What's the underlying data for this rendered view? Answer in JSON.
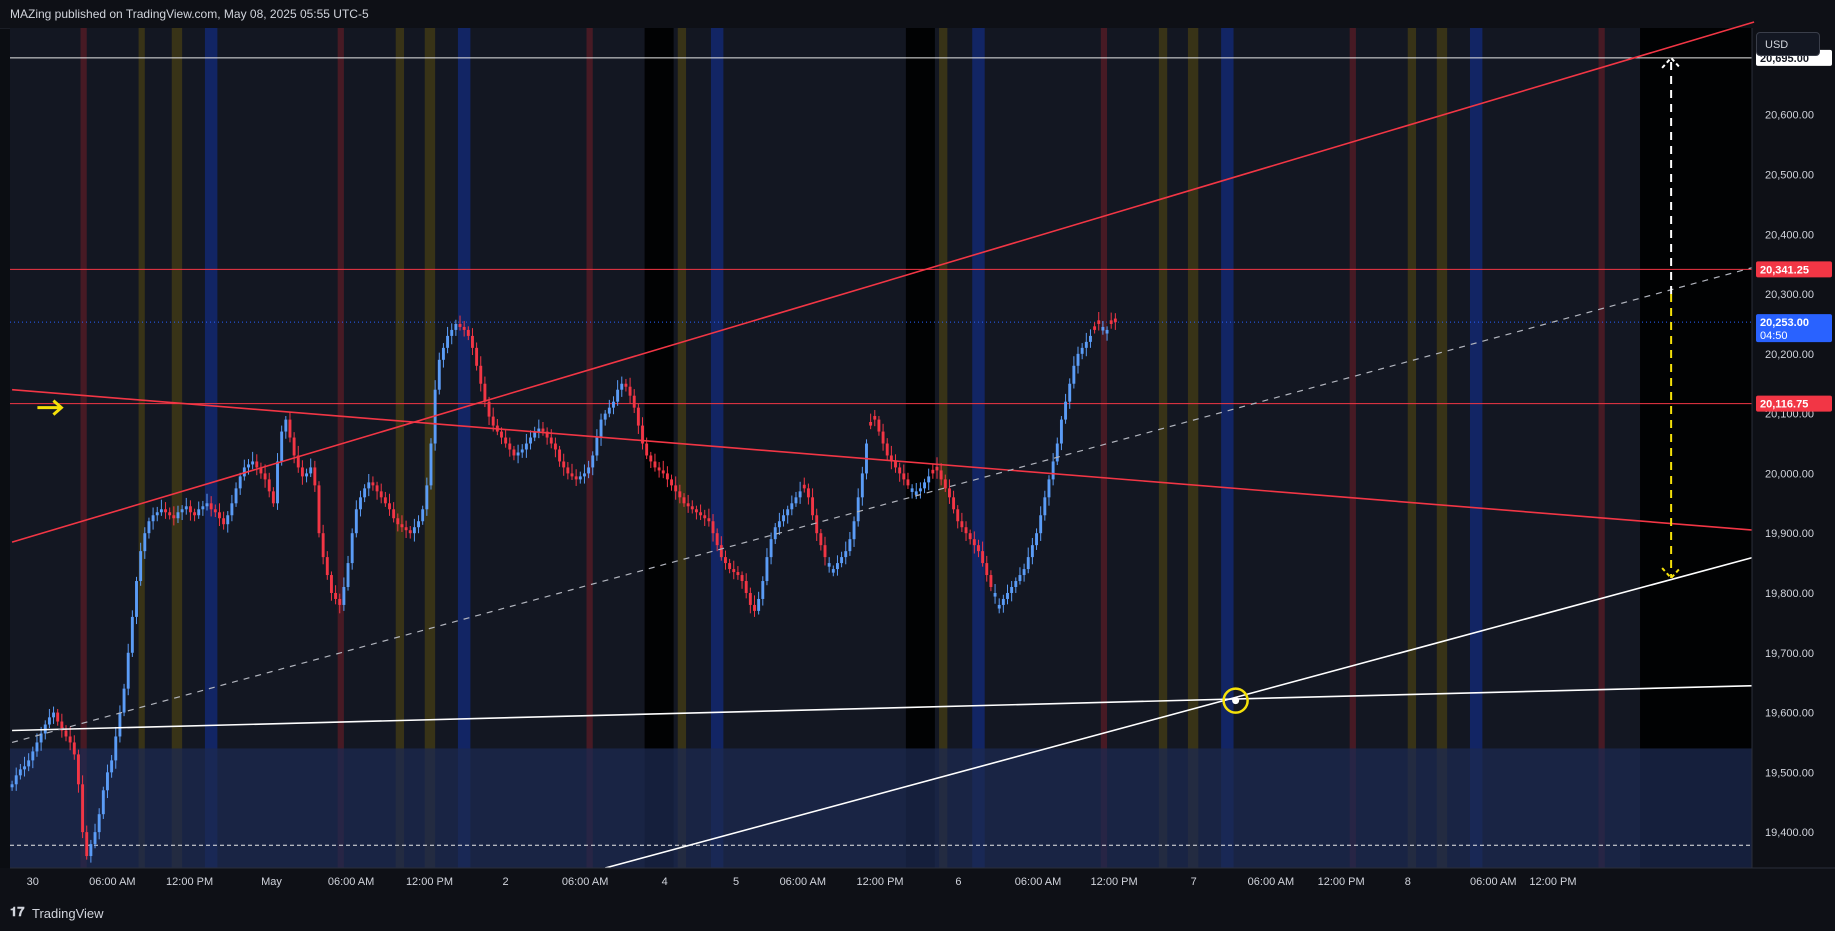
{
  "header": {
    "publisher_text": "MAZing published on TradingView.com, May 08, 2025 05:55 UTC-5"
  },
  "footer": {
    "logo_glyph": "𝟏𝟕",
    "brand": "TradingView"
  },
  "price_axis": {
    "currency": "USD"
  },
  "colors": {
    "background": "#131722",
    "bull": "#5b9cf6",
    "bear": "#f23645",
    "trend_red": "#f23645",
    "trend_white": "#ffffff",
    "marker_yellow": "#f5e10a",
    "label_blue": "#2962ff",
    "label_red": "#f23645",
    "zone_red": "#5a1c26",
    "zone_yellow": "#3d3616",
    "zone_blue": "#13276b",
    "zone_black": "#000000",
    "support_zone": "#1c2a50"
  },
  "chart_data": {
    "type": "candlestick",
    "symbol_currency": "USD",
    "x_tick_labels": [
      "30",
      "06:00 AM",
      "12:00 PM",
      "May",
      "06:00 AM",
      "12:00 PM",
      "2",
      "06:00 AM",
      "4",
      "5",
      "06:00 AM",
      "12:00 PM",
      "6",
      "06:00 AM",
      "12:00 PM",
      "7",
      "06:00 AM",
      "12:00 PM",
      "8",
      "06:00 AM",
      "12:00 PM"
    ],
    "y_ticks": [
      19400,
      19500,
      19600,
      19700,
      19800,
      19900,
      20000,
      20100,
      20200,
      20300,
      20400,
      20500,
      20600
    ],
    "y_tick_labels": [
      "19,400.00",
      "19,500.00",
      "19,600.00",
      "19,700.00",
      "19,800.00",
      "19,900.00",
      "20,000.00",
      "20,100.00",
      "20,200.00",
      "20,300.00",
      "20,400.00",
      "20,500.00",
      "20,600.00"
    ],
    "ylim": [
      19340,
      20745
    ],
    "bar_count": 420,
    "price_labels": [
      {
        "value": 20695.0,
        "text": "20,695.00",
        "style": "white"
      },
      {
        "value": 20341.25,
        "text": "20,341.25",
        "style": "red"
      },
      {
        "value": 20253.0,
        "text": "20,253.00",
        "countdown": "04:50",
        "style": "blue"
      },
      {
        "value": 20116.75,
        "text": "20,116.75",
        "style": "red"
      }
    ],
    "horizontal_lines": [
      {
        "value": 20695.0,
        "color": "white",
        "dash": "solid"
      },
      {
        "value": 20341.25,
        "color": "red",
        "dash": "solid"
      },
      {
        "value": 20253.0,
        "color": "blue",
        "dash": "dotted"
      },
      {
        "value": 20116.75,
        "color": "red",
        "dash": "solid"
      },
      {
        "value": 19378.0,
        "color": "white",
        "dash": "dashed"
      }
    ],
    "support_zone": {
      "from": 19340,
      "to": 19540
    },
    "trendlines": [
      {
        "color": "red",
        "style": "solid",
        "p1": {
          "bar": 0,
          "price": 19885
        },
        "p2": {
          "bar": 420,
          "price": 20755
        }
      },
      {
        "color": "red",
        "style": "solid",
        "p1": {
          "bar": 0,
          "price": 20140
        },
        "p2": {
          "bar": 420,
          "price": 19905
        }
      },
      {
        "color": "white",
        "style": "solid",
        "p1": {
          "bar": 0,
          "price": 19570
        },
        "p2": {
          "bar": 420,
          "price": 19645
        }
      },
      {
        "color": "white",
        "style": "solid",
        "p1": {
          "bar": 143,
          "price": 19340
        },
        "p2": {
          "bar": 420,
          "price": 19860
        }
      },
      {
        "color": "white",
        "style": "dashed",
        "p1": {
          "bar": 0,
          "price": 19550
        },
        "p2": {
          "bar": 420,
          "price": 20345
        }
      }
    ],
    "arrows": [
      {
        "color": "white",
        "bar": 400,
        "from": 20300,
        "to": 20695
      },
      {
        "color": "yellow",
        "bar": 400,
        "from": 20300,
        "to": 19825
      }
    ],
    "markers": [
      {
        "type": "circle",
        "color": "yellow",
        "bar": 295,
        "price": 19620
      },
      {
        "type": "arrow-right",
        "color": "yellow",
        "bar": 9,
        "price": 20110
      }
    ],
    "vertical_zones": [
      {
        "bar": 17,
        "width": 1.5,
        "color": "red"
      },
      {
        "bar": 31,
        "width": 1.5,
        "color": "yellow"
      },
      {
        "bar": 39,
        "width": 2.5,
        "color": "yellow"
      },
      {
        "bar": 47,
        "width": 3,
        "color": "blue"
      },
      {
        "bar": 79,
        "width": 1.5,
        "color": "red"
      },
      {
        "bar": 93,
        "width": 2,
        "color": "yellow"
      },
      {
        "bar": 100,
        "width": 2.5,
        "color": "yellow"
      },
      {
        "bar": 108,
        "width": 3,
        "color": "blue"
      },
      {
        "bar": 139,
        "width": 1.5,
        "color": "red"
      },
      {
        "bar": 153,
        "width": 7,
        "color": "black"
      },
      {
        "bar": 161,
        "width": 2,
        "color": "yellow"
      },
      {
        "bar": 169,
        "width": 3,
        "color": "blue"
      },
      {
        "bar": 216,
        "width": 7,
        "color": "black"
      },
      {
        "bar": 224,
        "width": 2,
        "color": "yellow"
      },
      {
        "bar": 232,
        "width": 3,
        "color": "blue"
      },
      {
        "bar": 263,
        "width": 1.5,
        "color": "red"
      },
      {
        "bar": 277,
        "width": 2,
        "color": "yellow"
      },
      {
        "bar": 284,
        "width": 2.5,
        "color": "yellow"
      },
      {
        "bar": 292,
        "width": 3,
        "color": "blue"
      },
      {
        "bar": 323,
        "width": 1.5,
        "color": "red"
      },
      {
        "bar": 337,
        "width": 2,
        "color": "yellow"
      },
      {
        "bar": 344,
        "width": 2.5,
        "color": "yellow"
      },
      {
        "bar": 352,
        "width": 3,
        "color": "blue"
      },
      {
        "bar": 383,
        "width": 1.5,
        "color": "red"
      },
      {
        "bar": 393,
        "width": 27,
        "color": "black"
      }
    ],
    "candles_close": [
      19480,
      19495,
      19505,
      19510,
      19520,
      19535,
      19550,
      19565,
      19580,
      19592,
      19600,
      19585,
      19570,
      19560,
      19550,
      19530,
      19480,
      19400,
      19360,
      19380,
      19400,
      19430,
      19470,
      19500,
      19520,
      19560,
      19600,
      19640,
      19700,
      19760,
      19820,
      19870,
      19900,
      19920,
      19930,
      19935,
      19940,
      19935,
      19930,
      19925,
      19935,
      19940,
      19945,
      19935,
      19930,
      19940,
      19945,
      19950,
      19940,
      19935,
      19925,
      19915,
      19930,
      19950,
      19975,
      19995,
      20010,
      20015,
      20020,
      20010,
      20000,
      19990,
      19970,
      19950,
      20020,
      20070,
      20090,
      20060,
      20030,
      20010,
      19995,
      20000,
      20010,
      19980,
      19900,
      19860,
      19830,
      19800,
      19790,
      19780,
      19810,
      19850,
      19900,
      19940,
      19960,
      19975,
      19985,
      19980,
      19970,
      19960,
      19950,
      19940,
      19925,
      19915,
      19910,
      19905,
      19900,
      19910,
      19920,
      19940,
      19980,
      20050,
      20140,
      20190,
      20210,
      20230,
      20240,
      20250,
      20245,
      20240,
      20230,
      20210,
      20180,
      20150,
      20120,
      20095,
      20080,
      20070,
      20060,
      20050,
      20040,
      20030,
      20035,
      20040,
      20050,
      20060,
      20070,
      20075,
      20070,
      20060,
      20050,
      20040,
      20020,
      20010,
      20000,
      19995,
      19990,
      19995,
      20000,
      20010,
      20030,
      20060,
      20090,
      20100,
      20110,
      20120,
      20140,
      20150,
      20145,
      20130,
      20110,
      20080,
      20050,
      20030,
      20020,
      20010,
      20005,
      20000,
      19990,
      19980,
      19970,
      19960,
      19950,
      19945,
      19940,
      19935,
      19930,
      19925,
      19920,
      19900,
      19880,
      19860,
      19850,
      19840,
      19835,
      19830,
      19820,
      19800,
      19780,
      19770,
      19790,
      19820,
      19860,
      19890,
      19910,
      19920,
      19930,
      19940,
      19950,
      19960,
      19970,
      19975,
      19960,
      19930,
      19900,
      19880,
      19860,
      19850,
      19840,
      19850,
      19860,
      19870,
      19890,
      19920,
      19960,
      20000,
      20050,
      20080,
      20090,
      20070,
      20050,
      20030,
      20020,
      20010,
      20000,
      19990,
      19980,
      19975,
      19970,
      19975,
      19985,
      19995,
      20000,
      20005,
      19990,
      19975,
      19960,
      19940,
      19920,
      19910,
      19900,
      19890,
      19880,
      19870,
      19850,
      19830,
      19810,
      19800,
      19780,
      19790,
      19800,
      19810,
      19820,
      19830,
      19840,
      19860,
      19880,
      19900,
      19930,
      19960,
      19990,
      20020,
      20050,
      20090,
      20120,
      20150,
      20180,
      20200,
      20210,
      20220,
      20230,
      20240,
      20250,
      20245,
      20240,
      20250,
      20253
    ],
    "candles_up": [
      true,
      true,
      true,
      true,
      true,
      true,
      true,
      true,
      true,
      true,
      true,
      false,
      false,
      false,
      false,
      false,
      false,
      false,
      false,
      true,
      true,
      true,
      true,
      true,
      true,
      true,
      true,
      true,
      true,
      true,
      true,
      true,
      true,
      true,
      true,
      true,
      true,
      false,
      false,
      false,
      true,
      true,
      true,
      false,
      false,
      true,
      true,
      true,
      false,
      false,
      false,
      false,
      true,
      true,
      true,
      true,
      true,
      true,
      true,
      false,
      false,
      false,
      false,
      false,
      true,
      true,
      true,
      false,
      false,
      false,
      false,
      true,
      true,
      false,
      false,
      false,
      false,
      false,
      false,
      false,
      true,
      true,
      true,
      true,
      true,
      true,
      true,
      false,
      false,
      false,
      false,
      false,
      false,
      false,
      false,
      false,
      false,
      true,
      true,
      true,
      true,
      true,
      true,
      true,
      true,
      true,
      true,
      true,
      false,
      false,
      false,
      false,
      false,
      false,
      false,
      false,
      false,
      false,
      false,
      false,
      false,
      false,
      true,
      true,
      true,
      true,
      true,
      true,
      false,
      false,
      false,
      false,
      false,
      false,
      false,
      false,
      false,
      true,
      true,
      true,
      true,
      true,
      true,
      true,
      true,
      true,
      true,
      true,
      false,
      false,
      false,
      false,
      false,
      false,
      false,
      false,
      false,
      false,
      false,
      false,
      false,
      false,
      false,
      false,
      false,
      false,
      false,
      false,
      false,
      false,
      false,
      false,
      false,
      false,
      false,
      false,
      false,
      false,
      false,
      false,
      true,
      true,
      true,
      true,
      true,
      true,
      true,
      true,
      true,
      true,
      true,
      false,
      false,
      false,
      false,
      false,
      false,
      true,
      true,
      true,
      true,
      true,
      true,
      true,
      true,
      true,
      true,
      false,
      false,
      false,
      false,
      false,
      false,
      false,
      false,
      false,
      false,
      true,
      true,
      true,
      true,
      true,
      false,
      false,
      false,
      false,
      false,
      false,
      false,
      false,
      false,
      false,
      false,
      false,
      false,
      false,
      false,
      true,
      true,
      true,
      true,
      true,
      true,
      true,
      true,
      true,
      true,
      true,
      true,
      true,
      true,
      true,
      true,
      true,
      true,
      true,
      true,
      true,
      true,
      true,
      true,
      false,
      false,
      true,
      true
    ]
  }
}
